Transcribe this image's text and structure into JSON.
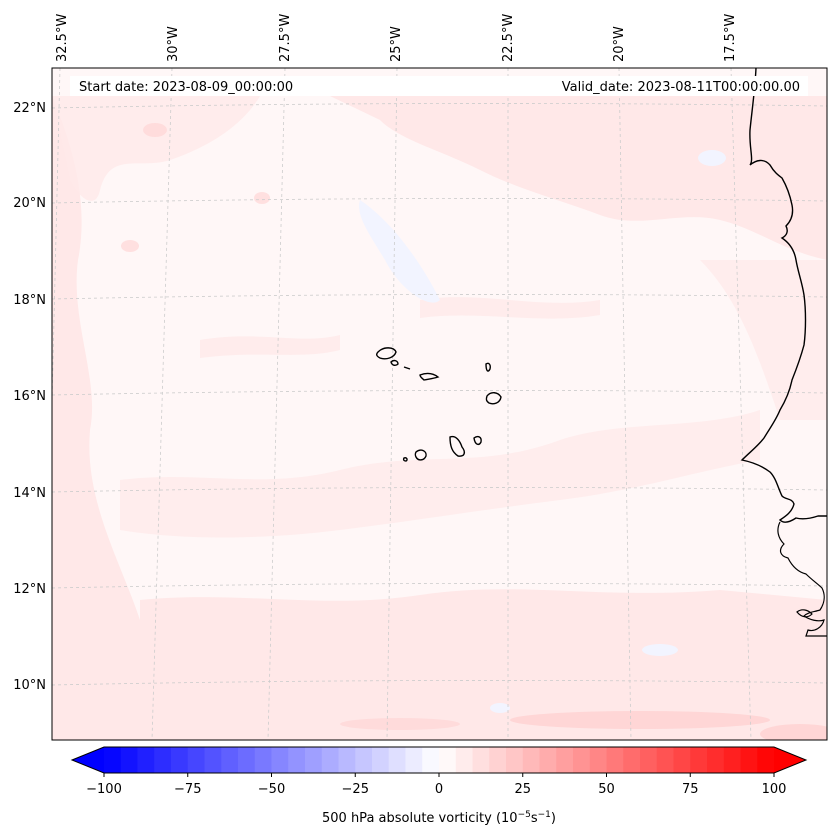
{
  "header": {
    "start_date_label": "Start date: 2023-08-09_00:00:00",
    "valid_date_label": "Valid_date: 2023-08-11T00:00:00.00"
  },
  "longitude_labels": [
    "32.5°W",
    "30°W",
    "27.5°W",
    "25°W",
    "22.5°W",
    "20°W",
    "17.5°W"
  ],
  "latitude_labels": [
    "22°N",
    "20°N",
    "18°N",
    "16°N",
    "14°N",
    "12°N",
    "10°N"
  ],
  "colorbar": {
    "title_prefix": "500 hPa absolute vorticity (10",
    "title_exp1": "−5",
    "title_mid": "s",
    "title_exp2": "−1",
    "title_suffix": ")",
    "min": -100,
    "max": 100,
    "tick_values": [
      -100,
      -75,
      -50,
      -25,
      0,
      25,
      50,
      75,
      100
    ],
    "tick_labels": [
      "−100",
      "−75",
      "−50",
      "−25",
      "0",
      "25",
      "50",
      "75",
      "100"
    ],
    "negative_color": "#0000ff",
    "positive_color": "#ff0000",
    "neutral_color": "#ffffff"
  },
  "colors": {
    "background_field": "#fff7f7",
    "weak_positive": "#ffe8e8",
    "moderate_positive": "#ffd6d6",
    "weak_negative": "#f2f4ff",
    "coastline": "#000000",
    "gridline": "#cccccc"
  }
}
